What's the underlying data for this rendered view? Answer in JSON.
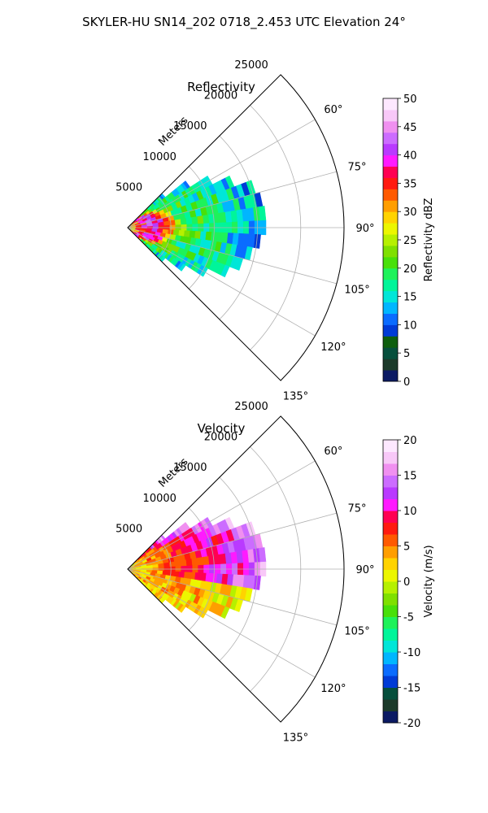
{
  "figure": {
    "suptitle": "SKYLER-HU  SN14_202  0718_2.453 UTC Elevation 24°"
  },
  "chart_data": [
    {
      "type": "polar-sector-ppi",
      "title": "Reflectivity",
      "range_label": "Meters",
      "range_ticks": [
        5000,
        10000,
        15000,
        20000,
        25000
      ],
      "range_max": 25000,
      "azimuth_ticks": [
        "60°",
        "75°",
        "90°",
        "105°",
        "120°",
        "135°"
      ],
      "azimuth_range_deg": [
        45,
        135
      ],
      "colorbar": {
        "label": "Reflectivity dBZ",
        "vmin": 0,
        "vmax": 50,
        "ticks": [
          0,
          5,
          10,
          15,
          20,
          25,
          30,
          35,
          40,
          45,
          50
        ],
        "colors": [
          "#0b1a63",
          "#1c3a2a",
          "#064f3c",
          "#0e5e0e",
          "#003bd6",
          "#0a6cff",
          "#00b6ff",
          "#00e6d8",
          "#00f59a",
          "#1ef25a",
          "#48e00a",
          "#7fe000",
          "#b6f000",
          "#ecf600",
          "#ffd300",
          "#ff9e00",
          "#ff5a00",
          "#ff1a10",
          "#ff0052",
          "#ff1aff",
          "#b93aff",
          "#cc6cff",
          "#f090f0",
          "#f8c8f8",
          "#fde8ff"
        ]
      },
      "rays": [
        {
          "az": 48,
          "min_r": 300,
          "max_r": 5600
        },
        {
          "az": 54,
          "min_r": 300,
          "max_r": 8600
        },
        {
          "az": 60,
          "min_r": 300,
          "max_r": 11000
        },
        {
          "az": 66,
          "min_r": 300,
          "max_r": 13200
        },
        {
          "az": 72,
          "min_r": 300,
          "max_r": 15300
        },
        {
          "az": 78,
          "min_r": 300,
          "max_r": 15800
        },
        {
          "az": 84,
          "min_r": 300,
          "max_r": 16000
        },
        {
          "az": 90,
          "min_r": 300,
          "max_r": 16000
        },
        {
          "az": 96,
          "min_r": 300,
          "max_r": 15400
        },
        {
          "az": 102,
          "min_r": 300,
          "max_r": 14600
        },
        {
          "az": 108,
          "min_r": 300,
          "max_r": 13800
        },
        {
          "az": 114,
          "min_r": 300,
          "max_r": 12600
        },
        {
          "az": 120,
          "min_r": 300,
          "max_r": 10400
        },
        {
          "az": 126,
          "min_r": 300,
          "max_r": 8000
        },
        {
          "az": 132,
          "min_r": 300,
          "max_r": 5600
        }
      ]
    },
    {
      "type": "polar-sector-ppi",
      "title": "Velocity",
      "range_label": "Meters",
      "range_ticks": [
        5000,
        10000,
        15000,
        20000,
        25000
      ],
      "range_max": 25000,
      "azimuth_ticks": [
        "60°",
        "75°",
        "90°",
        "105°",
        "120°",
        "135°"
      ],
      "azimuth_range_deg": [
        45,
        135
      ],
      "colorbar": {
        "label": "Velocity (m/s)",
        "vmin": -20,
        "vmax": 20,
        "ticks": [
          -20,
          -15,
          -10,
          -5,
          0,
          5,
          10,
          15,
          20
        ],
        "colors": [
          "#0b1a63",
          "#1c3a2a",
          "#064f3c",
          "#003bd6",
          "#0a6cff",
          "#00b6ff",
          "#00e6d8",
          "#00f59a",
          "#1ef25a",
          "#48e00a",
          "#7fe000",
          "#b6f000",
          "#ecf600",
          "#ffd300",
          "#ff9e00",
          "#ff5a00",
          "#ff1a10",
          "#ff0052",
          "#ff1aff",
          "#b93aff",
          "#cc6cff",
          "#f090f0",
          "#f8c8f8",
          "#fde8ff"
        ]
      },
      "rays": [
        {
          "az": 48,
          "min_r": 300,
          "max_r": 5600
        },
        {
          "az": 54,
          "min_r": 300,
          "max_r": 8600
        },
        {
          "az": 60,
          "min_r": 300,
          "max_r": 11000
        },
        {
          "az": 66,
          "min_r": 300,
          "max_r": 13200
        },
        {
          "az": 72,
          "min_r": 300,
          "max_r": 15300
        },
        {
          "az": 78,
          "min_r": 300,
          "max_r": 15800
        },
        {
          "az": 84,
          "min_r": 300,
          "max_r": 16000
        },
        {
          "az": 90,
          "min_r": 300,
          "max_r": 16000
        },
        {
          "az": 96,
          "min_r": 300,
          "max_r": 15400
        },
        {
          "az": 102,
          "min_r": 300,
          "max_r": 14600
        },
        {
          "az": 108,
          "min_r": 300,
          "max_r": 13800
        },
        {
          "az": 114,
          "min_r": 300,
          "max_r": 12600
        },
        {
          "az": 120,
          "min_r": 300,
          "max_r": 10400
        },
        {
          "az": 126,
          "min_r": 300,
          "max_r": 8000
        },
        {
          "az": 132,
          "min_r": 300,
          "max_r": 5600
        }
      ]
    }
  ]
}
